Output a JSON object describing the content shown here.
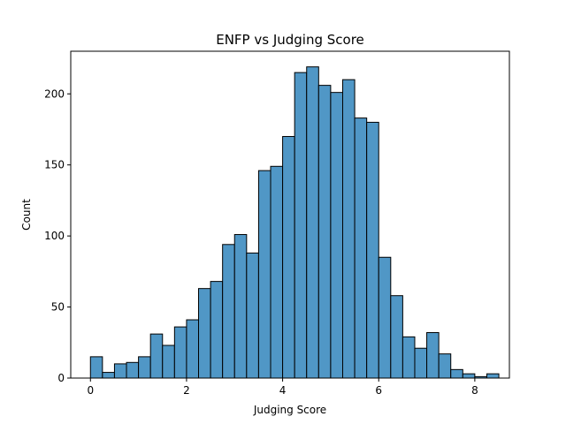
{
  "chart_data": {
    "type": "bar",
    "subtype": "histogram",
    "title": "ENFP vs Judging Score",
    "xlabel": "Judging Score",
    "ylabel": "Count",
    "xlim": [
      -0.41,
      8.72
    ],
    "ylim": [
      0,
      230
    ],
    "xticks": [
      0,
      2,
      4,
      6,
      8
    ],
    "yticks": [
      0,
      50,
      100,
      150,
      200
    ],
    "bin_start": 0.0,
    "bin_width": 0.25,
    "values": [
      15,
      4,
      10,
      11,
      15,
      31,
      23,
      36,
      41,
      63,
      68,
      94,
      101,
      88,
      146,
      149,
      170,
      215,
      219,
      206,
      201,
      210,
      183,
      180,
      85,
      58,
      29,
      21,
      32,
      17,
      6,
      3,
      1,
      3
    ],
    "bar_color": "#5097c6",
    "edge_color": "#000000",
    "grid": false,
    "legend": "none"
  }
}
